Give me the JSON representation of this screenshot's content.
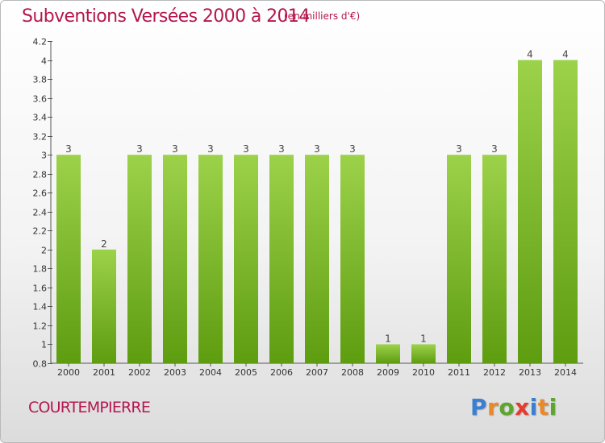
{
  "header": {
    "title": "Subventions Versées 2000 à 2014",
    "unit": "(en milliers d'€)"
  },
  "footer": {
    "commune": "COURTEMPIERRE",
    "logo": {
      "letters": [
        "P",
        "r",
        "o",
        "x",
        "i",
        "t",
        "i"
      ],
      "colors": [
        "#3a7fd2",
        "#e8892a",
        "#5aa72a",
        "#e63a2e",
        "#3a7fd2",
        "#e8892a",
        "#5aa72a"
      ]
    }
  },
  "chart_data": {
    "type": "bar",
    "title": "Subventions Versées 2000 à 2014",
    "subtitle": "(en milliers d'€)",
    "categories": [
      "2000",
      "2001",
      "2002",
      "2003",
      "2004",
      "2005",
      "2006",
      "2007",
      "2008",
      "2009",
      "2010",
      "2011",
      "2012",
      "2013",
      "2014"
    ],
    "values": [
      3,
      2,
      3,
      3,
      3,
      3,
      3,
      3,
      3,
      1,
      1,
      3,
      3,
      4,
      4
    ],
    "data_labels": [
      "3",
      "2",
      "3",
      "3",
      "3",
      "3",
      "3",
      "3",
      "3",
      "1",
      "1",
      "3",
      "3",
      "4",
      "4"
    ],
    "ylim": [
      0.8,
      4.2
    ],
    "y_ticks": [
      0.8,
      1,
      1.2,
      1.4,
      1.6,
      1.8,
      2,
      2.2,
      2.4,
      2.6,
      2.8,
      3,
      3.2,
      3.4,
      3.6,
      3.8,
      4,
      4.2
    ],
    "y_tick_labels": [
      "0.8",
      "1",
      "1.2",
      "1.4",
      "1.6",
      "1.8",
      "2",
      "2.2",
      "2.4",
      "2.6",
      "2.8",
      "3",
      "3.2",
      "3.4",
      "3.6",
      "3.8",
      "4",
      "4.2"
    ],
    "grid": false,
    "legend": "none",
    "colors": {
      "bar_light": "#9cd24a",
      "bar_dark": "#5e9c10"
    }
  }
}
